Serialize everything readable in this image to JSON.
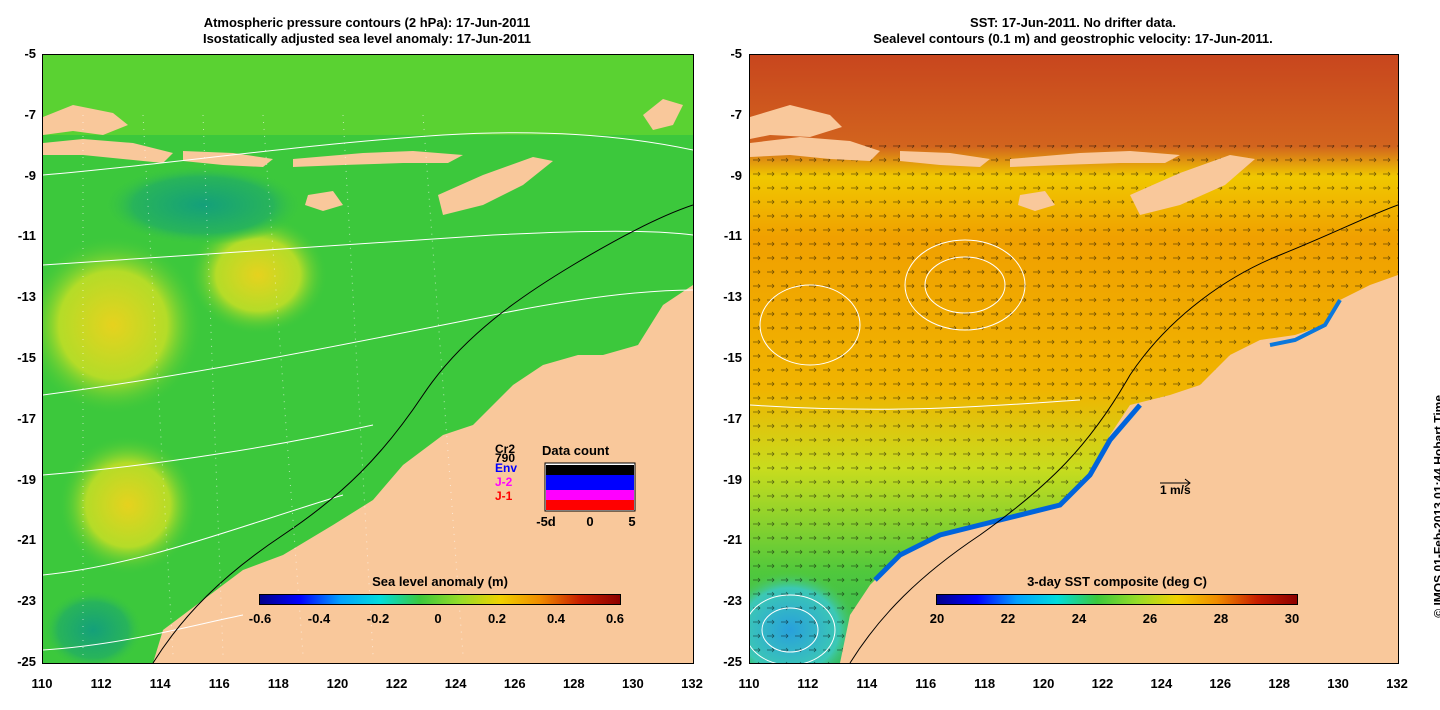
{
  "left_panel": {
    "title_line1": "Atmospheric pressure contours (2 hPa): 17-Jun-2011",
    "title_line2": "Isostatically adjusted sea level anomaly: 17-Jun-2011",
    "colorbar_title": "Sea level anomaly (m)",
    "colorbar_labels": [
      "-0.6",
      "-0.4",
      "-0.2",
      "0",
      "0.2",
      "0.4",
      "0.6"
    ],
    "data_count": {
      "title": "Data count",
      "satellites": [
        {
          "name": "Cr2",
          "color": "#000000"
        },
        {
          "name": "790",
          "color": "#000000"
        },
        {
          "name": "Env",
          "color": "#0000ff"
        },
        {
          "name": "J-2",
          "color": "#ff00ff"
        },
        {
          "name": "J-1",
          "color": "#ff0000"
        }
      ],
      "axis_labels": [
        "-5d",
        "0",
        "5"
      ]
    }
  },
  "right_panel": {
    "title_line1": "SST: 17-Jun-2011. No drifter data.",
    "title_line2": "Sealevel contours (0.1 m) and geostrophic velocity: 17-Jun-2011.",
    "colorbar_title": "3-day SST composite (deg C)",
    "colorbar_labels": [
      "20",
      "22",
      "24",
      "26",
      "28",
      "30"
    ],
    "scale_arrow_label": "1 m/s"
  },
  "y_ticks": [
    "-5",
    "-7",
    "-9",
    "-11",
    "-13",
    "-15",
    "-17",
    "-19",
    "-21",
    "-23",
    "-25"
  ],
  "x_ticks": [
    "110",
    "112",
    "114",
    "116",
    "118",
    "120",
    "122",
    "124",
    "126",
    "128",
    "130",
    "132"
  ],
  "credit": "© IMOS 01-Feb-2013 01:44 Hobart Time",
  "colors": {
    "land": "#f9c89b",
    "ocean_green": "#3cc83c",
    "sst_orange": "#f4a000",
    "sst_red": "#c83c14"
  }
}
